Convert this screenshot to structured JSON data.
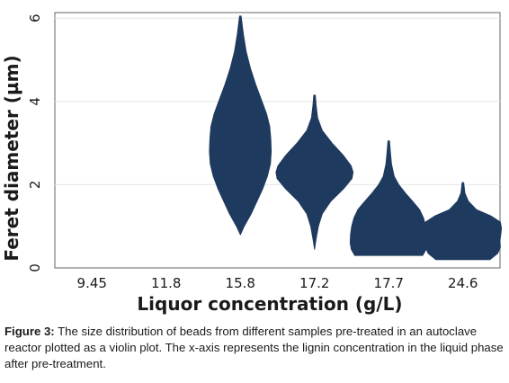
{
  "chart_data": {
    "type": "violin",
    "xlabel": "Liquor concentration (g/L)",
    "ylabel": "Feret diameter (µm)",
    "ylim": [
      0,
      6
    ],
    "yticks": [
      0,
      2,
      4,
      6
    ],
    "categories": [
      "9.45",
      "11.8",
      "15.8",
      "17.2",
      "17.7",
      "24.6"
    ],
    "color": "#1f3a5f",
    "grid": "horizontal",
    "violins": [
      {
        "category": "9.45",
        "empty": true
      },
      {
        "category": "11.8",
        "empty": true
      },
      {
        "category": "15.8",
        "min": 0.8,
        "max": 6.05,
        "profile": [
          [
            0.8,
            0.0
          ],
          [
            1.0,
            0.1
          ],
          [
            1.3,
            0.28
          ],
          [
            1.6,
            0.43
          ],
          [
            1.9,
            0.58
          ],
          [
            2.2,
            0.7
          ],
          [
            2.5,
            0.78
          ],
          [
            2.8,
            0.8
          ],
          [
            3.1,
            0.79
          ],
          [
            3.4,
            0.76
          ],
          [
            3.7,
            0.68
          ],
          [
            4.0,
            0.56
          ],
          [
            4.4,
            0.4
          ],
          [
            4.8,
            0.26
          ],
          [
            5.2,
            0.15
          ],
          [
            5.6,
            0.08
          ],
          [
            6.05,
            0.02
          ]
        ]
      },
      {
        "category": "17.2",
        "min": 0.45,
        "max": 4.15,
        "profile": [
          [
            0.45,
            0.0
          ],
          [
            0.7,
            0.04
          ],
          [
            1.0,
            0.1
          ],
          [
            1.3,
            0.2
          ],
          [
            1.6,
            0.42
          ],
          [
            1.9,
            0.75
          ],
          [
            2.15,
            0.97
          ],
          [
            2.3,
            1.0
          ],
          [
            2.45,
            0.95
          ],
          [
            2.7,
            0.75
          ],
          [
            3.0,
            0.45
          ],
          [
            3.3,
            0.2
          ],
          [
            3.6,
            0.08
          ],
          [
            3.9,
            0.04
          ],
          [
            4.15,
            0.02
          ]
        ]
      },
      {
        "category": "17.7",
        "min": 0.3,
        "max": 3.05,
        "profile": [
          [
            0.3,
            0.88
          ],
          [
            0.45,
            0.97
          ],
          [
            0.6,
            1.0
          ],
          [
            0.8,
            0.99
          ],
          [
            1.0,
            0.96
          ],
          [
            1.2,
            0.9
          ],
          [
            1.4,
            0.8
          ],
          [
            1.6,
            0.62
          ],
          [
            1.8,
            0.43
          ],
          [
            2.0,
            0.26
          ],
          [
            2.2,
            0.14
          ],
          [
            2.5,
            0.07
          ],
          [
            2.8,
            0.04
          ],
          [
            3.05,
            0.02
          ]
        ]
      },
      {
        "category": "24.6",
        "min": 0.2,
        "max": 2.05,
        "profile": [
          [
            0.2,
            0.7
          ],
          [
            0.35,
            0.9
          ],
          [
            0.5,
            0.97
          ],
          [
            0.65,
            0.96
          ],
          [
            0.8,
            0.98
          ],
          [
            0.95,
            1.0
          ],
          [
            1.1,
            0.97
          ],
          [
            1.25,
            0.72
          ],
          [
            1.4,
            0.35
          ],
          [
            1.6,
            0.14
          ],
          [
            1.8,
            0.05
          ],
          [
            2.05,
            0.02
          ]
        ]
      }
    ]
  },
  "caption": {
    "label": "Figure 3:",
    "text": " The size distribution of beads from different samples pre-treated in an autoclave reactor plotted as a violin plot. The x-axis represents the lignin concentration in the liquid phase after pre-treatment."
  }
}
